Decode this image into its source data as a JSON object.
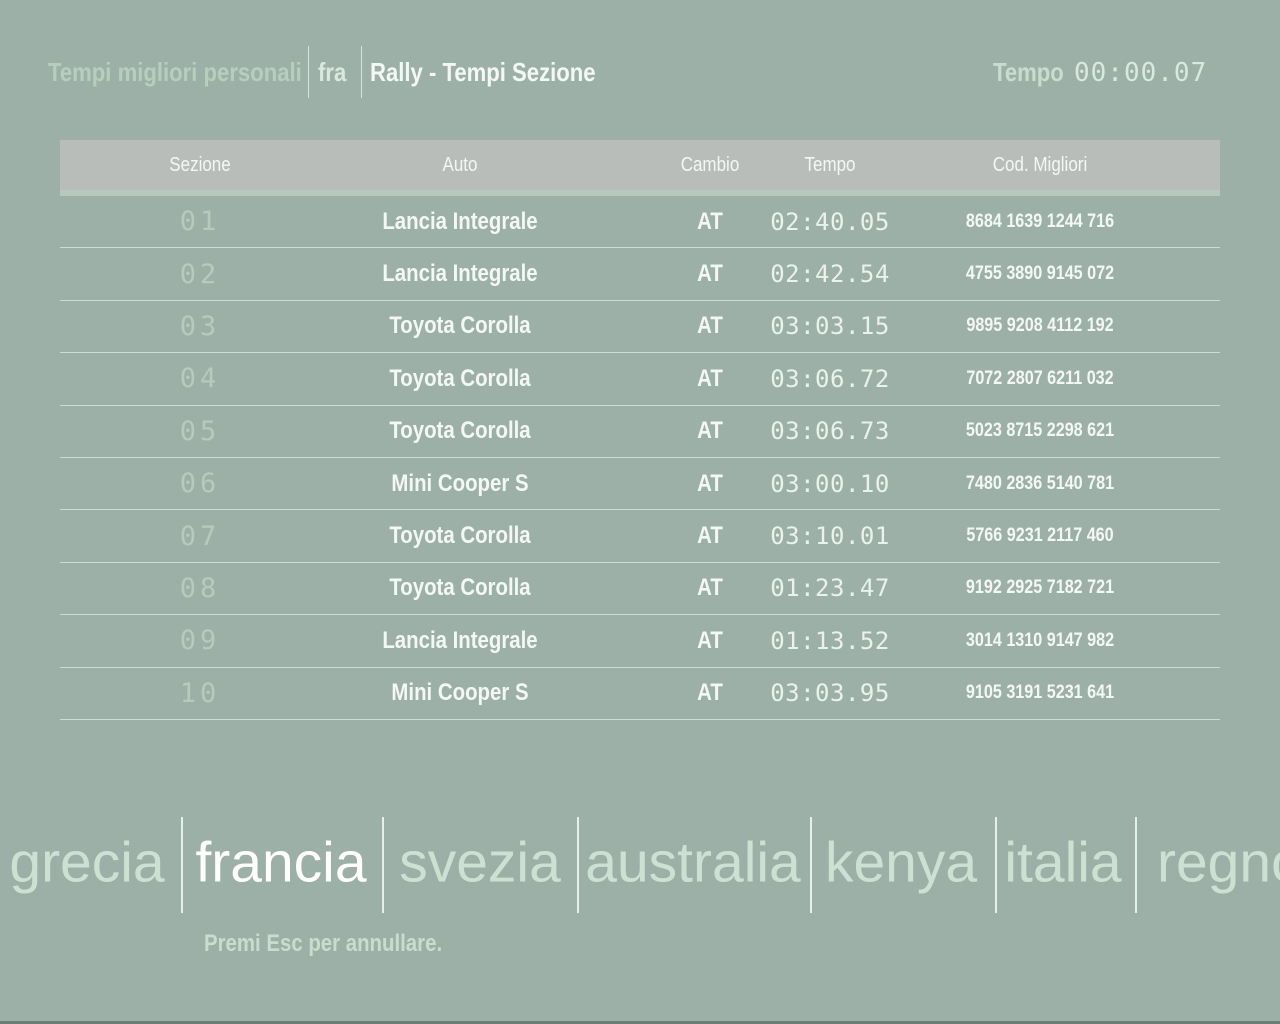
{
  "colors": {
    "bg": "#9db0a7",
    "header-gray": "#b9bdba",
    "white": "#f3f8f4",
    "pale": "#c9ddcf",
    "pale-bright": "#d9e9dd",
    "muted-title": "#b7cebe",
    "lcd-dim": "#b6cbbc",
    "lcd-bright": "#e9f2eb",
    "country": "#cde1d3",
    "country-selected": "#ffffff"
  },
  "header": {
    "left_title": "Tempi migliori personali",
    "mode": "fra",
    "screen_title": "Rally - Tempi Sezione",
    "tempo_label": "Tempo",
    "tempo_value": "00:00.07"
  },
  "table": {
    "columns": [
      {
        "label": "Sezione"
      },
      {
        "label": "Auto"
      },
      {
        "label": "Cambio"
      },
      {
        "label": "Tempo"
      },
      {
        "label": "Cod. Migliori"
      }
    ],
    "rows": [
      {
        "sezione": "01",
        "auto": "Lancia Integrale",
        "cambio": "AT",
        "tempo": "02:40.05",
        "cod": "8684 1639 1244 716"
      },
      {
        "sezione": "02",
        "auto": "Lancia Integrale",
        "cambio": "AT",
        "tempo": "02:42.54",
        "cod": "4755 3890 9145 072"
      },
      {
        "sezione": "03",
        "auto": "Toyota Corolla",
        "cambio": "AT",
        "tempo": "03:03.15",
        "cod": "9895 9208 4112 192"
      },
      {
        "sezione": "04",
        "auto": "Toyota Corolla",
        "cambio": "AT",
        "tempo": "03:06.72",
        "cod": "7072 2807 6211 032"
      },
      {
        "sezione": "05",
        "auto": "Toyota Corolla",
        "cambio": "AT",
        "tempo": "03:06.73",
        "cod": "5023 8715 2298 621"
      },
      {
        "sezione": "06",
        "auto": "Mini Cooper S",
        "cambio": "AT",
        "tempo": "03:00.10",
        "cod": "7480 2836 5140 781"
      },
      {
        "sezione": "07",
        "auto": "Toyota Corolla",
        "cambio": "AT",
        "tempo": "03:10.01",
        "cod": "5766 9231 2117 460"
      },
      {
        "sezione": "08",
        "auto": "Toyota Corolla",
        "cambio": "AT",
        "tempo": "01:23.47",
        "cod": "9192 2925 7182 721"
      },
      {
        "sezione": "09",
        "auto": "Lancia Integrale",
        "cambio": "AT",
        "tempo": "01:13.52",
        "cod": "3014 1310 9147 982"
      },
      {
        "sezione": "10",
        "auto": "Mini Cooper S",
        "cambio": "AT",
        "tempo": "03:03.95",
        "cod": "9105 3191 5231 641"
      }
    ]
  },
  "countries": {
    "items": [
      {
        "label": "grecia",
        "selected": false
      },
      {
        "label": "francia",
        "selected": true
      },
      {
        "label": "svezia",
        "selected": false
      },
      {
        "label": "australia",
        "selected": false
      },
      {
        "label": "kenya",
        "selected": false
      },
      {
        "label": "italia",
        "selected": false
      },
      {
        "label": "regno unito",
        "selected": false
      }
    ]
  },
  "footer": {
    "hint": "Premi Esc per annullare."
  }
}
